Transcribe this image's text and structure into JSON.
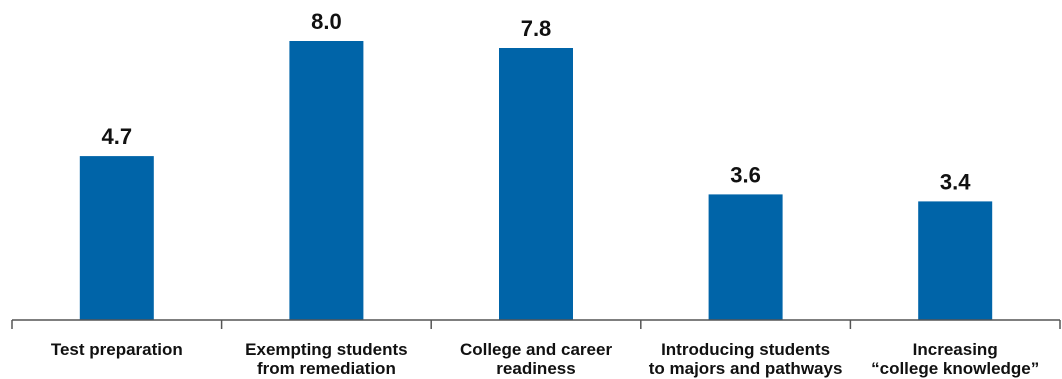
{
  "chart_data": {
    "type": "bar",
    "title": "",
    "xlabel": "",
    "ylabel": "",
    "categories": [
      [
        "Test preparation"
      ],
      [
        "Exempting students",
        "from remediation"
      ],
      [
        "College and career",
        "readiness"
      ],
      [
        "Introducing students",
        "to majors and pathways"
      ],
      [
        "Increasing",
        "“college knowledge”"
      ]
    ],
    "values": [
      4.7,
      8.0,
      7.8,
      3.6,
      3.4
    ],
    "value_labels": [
      "4.7",
      "8.0",
      "7.8",
      "3.6",
      "3.4"
    ],
    "ylim": [
      0,
      8.0
    ],
    "grid": false,
    "legend": "none",
    "colors": {
      "bar": "#0064A8",
      "axis": "#555555",
      "text": "#111111"
    }
  }
}
